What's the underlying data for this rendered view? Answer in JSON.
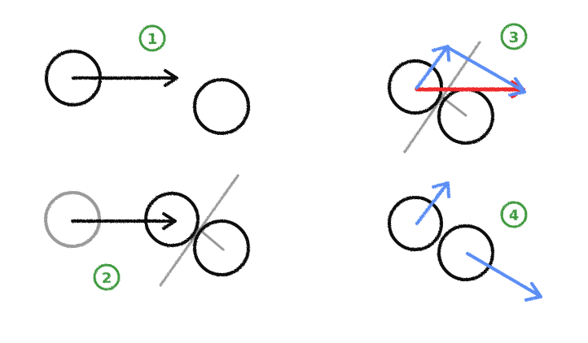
{
  "colors": {
    "background": "#ffffff",
    "ink": "#111111",
    "ghost": "#9a9a9a",
    "guide": "#9a9a9a",
    "velocity": "#5b8ef5",
    "combined": "#ee2b2b",
    "label": "#3f9a3f"
  },
  "steps": [
    {
      "label": "1"
    },
    {
      "label": "2"
    },
    {
      "label": "3"
    },
    {
      "label": "4"
    }
  ]
}
